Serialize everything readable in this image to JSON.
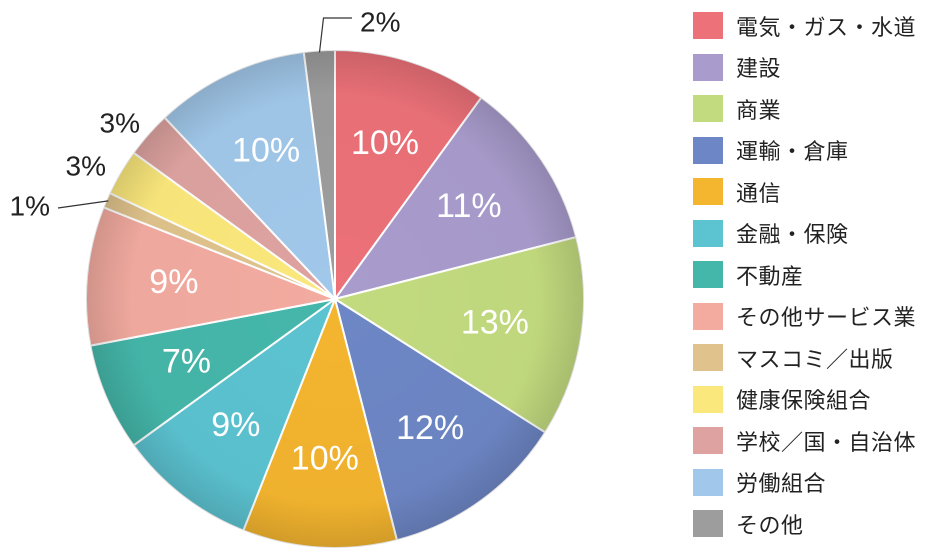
{
  "chart_data": {
    "type": "pie",
    "unit": "%",
    "series": [
      {
        "name": "電気・ガス・水道",
        "value": 10,
        "color": "#ec7178"
      },
      {
        "name": "建設",
        "value": 11,
        "color": "#a99ccd"
      },
      {
        "name": "商業",
        "value": 13,
        "color": "#c3db7f"
      },
      {
        "name": "運輸・倉庫",
        "value": 12,
        "color": "#6d86c5"
      },
      {
        "name": "通信",
        "value": 10,
        "color": "#f4b52f"
      },
      {
        "name": "金融・保険",
        "value": 9,
        "color": "#5cc3d1"
      },
      {
        "name": "不動産",
        "value": 7,
        "color": "#45b7aa"
      },
      {
        "name": "その他サービス業",
        "value": 9,
        "color": "#f3aba0"
      },
      {
        "name": "マスコミ／出版",
        "value": 1,
        "color": "#e0c38c"
      },
      {
        "name": "健康保険組合",
        "value": 3,
        "color": "#fbe87c"
      },
      {
        "name": "学校／国・自治体",
        "value": 3,
        "color": "#dea3a0"
      },
      {
        "name": "労働組合",
        "value": 10,
        "color": "#a1c8ea"
      },
      {
        "name": "その他",
        "value": 2,
        "color": "#9d9d9d"
      }
    ],
    "data_labels": [
      "10%",
      "11%",
      "13%",
      "12%",
      "10%",
      "9%",
      "7%",
      "9%",
      "1%",
      "3%",
      "3%",
      "10%",
      "2%"
    ],
    "legend_position": "right",
    "start": "top, clockwise"
  }
}
